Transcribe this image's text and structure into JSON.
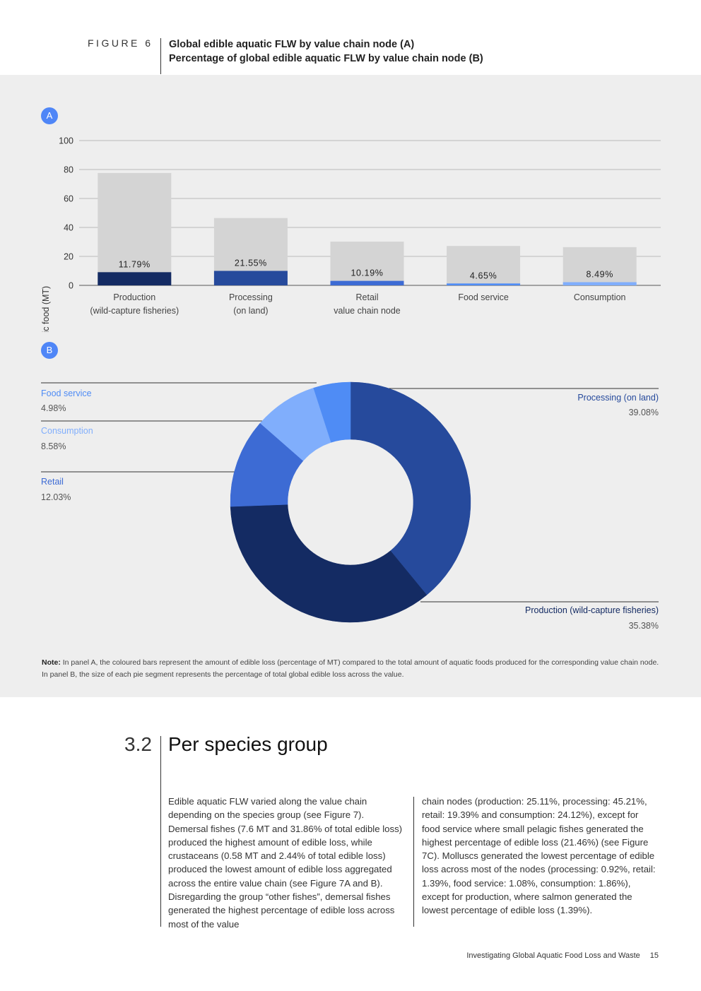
{
  "figure": {
    "label": "FIGURE 6",
    "title_line1": "Global edible aquatic FLW by value chain node (A)",
    "title_line2": "Percentage of global edible aquatic FLW by value chain node (B)"
  },
  "panel_a": {
    "badge": "A"
  },
  "panel_b": {
    "badge": "B"
  },
  "colors": {
    "panel_bg": "#eeeeee",
    "total_bar": "#d4d4d4",
    "production": "#142b63",
    "processing": "#264a9c",
    "retail": "#3d6bd4",
    "food_service": "#4f8cf5",
    "consumption": "#80aefc"
  },
  "chart_data": [
    {
      "type": "bar",
      "ylabel": "Amount of aquatic food (MT)",
      "ylim": [
        0,
        100
      ],
      "yticks": [
        0,
        20,
        40,
        60,
        80,
        100
      ],
      "grid": true,
      "categories": [
        [
          "Production",
          "(wild-capture fisheries)"
        ],
        [
          "Processing",
          "(on land)"
        ],
        [
          "Retail",
          "value chain node"
        ],
        [
          "Food service"
        ],
        [
          "Consumption"
        ]
      ],
      "series": [
        {
          "values": [
            77.6,
            46.5,
            30.2,
            27.2,
            26.4
          ]
        },
        {
          "values": [
            9.1,
            10.0,
            3.1,
            1.3,
            2.2
          ]
        }
      ],
      "data_labels": [
        "11.79%",
        "21.55%",
        "10.19%",
        "4.65%",
        "8.49%"
      ]
    },
    {
      "type": "pie",
      "donut": true,
      "slices": [
        {
          "label": "Processing (on land)",
          "value": 39.08,
          "display": "39.08%",
          "color": "#264a9c"
        },
        {
          "label": "Production (wild-capture fisheries)",
          "value": 35.38,
          "display": "35.38%",
          "color": "#142b63"
        },
        {
          "label": "Retail",
          "value": 12.03,
          "display": "12.03%",
          "color": "#3d6bd4"
        },
        {
          "label": "Consumption",
          "value": 8.58,
          "display": "8.58%",
          "color": "#80aefc"
        },
        {
          "label": "Food service",
          "value": 4.98,
          "display": "4.98%",
          "color": "#4f8cf5"
        }
      ]
    }
  ],
  "note": {
    "label": "Note:",
    "text": " In panel A, the coloured bars represent the amount of edible loss (percentage of MT) compared to the total amount of aquatic foods produced for the corresponding value chain node. In panel B, the size of each pie segment represents the percentage of total global edible loss across the value."
  },
  "section": {
    "number": "3.2",
    "title": "Per species group",
    "col1": "Edible aquatic FLW varied along the value chain depending on the species group (see Figure 7). Demersal fishes (7.6 MT and 31.86% of total edible loss) produced the highest amount of edible loss, while crustaceans (0.58 MT and 2.44% of total edible loss) produced the lowest amount of edible loss aggregated across the entire value chain (see Figure 7A and B). Disregarding the group “other fishes”, demersal fishes generated the highest percentage of edible loss across most of the value",
    "col2": "chain nodes (production: 25.11%, processing: 45.21%, retail: 19.39% and consumption: 24.12%), except for food service where small pelagic fishes generated the highest percentage of edible loss (21.46%) (see Figure 7C). Molluscs generated the lowest percentage of edible loss across most of the nodes (processing: 0.92%, retail: 1.39%, food service: 1.08%, consumption: 1.86%), except for production, where salmon generated the lowest percentage of edible loss (1.39%)."
  },
  "footer": {
    "title": "Investigating Global Aquatic Food Loss and Waste",
    "page": "15"
  }
}
